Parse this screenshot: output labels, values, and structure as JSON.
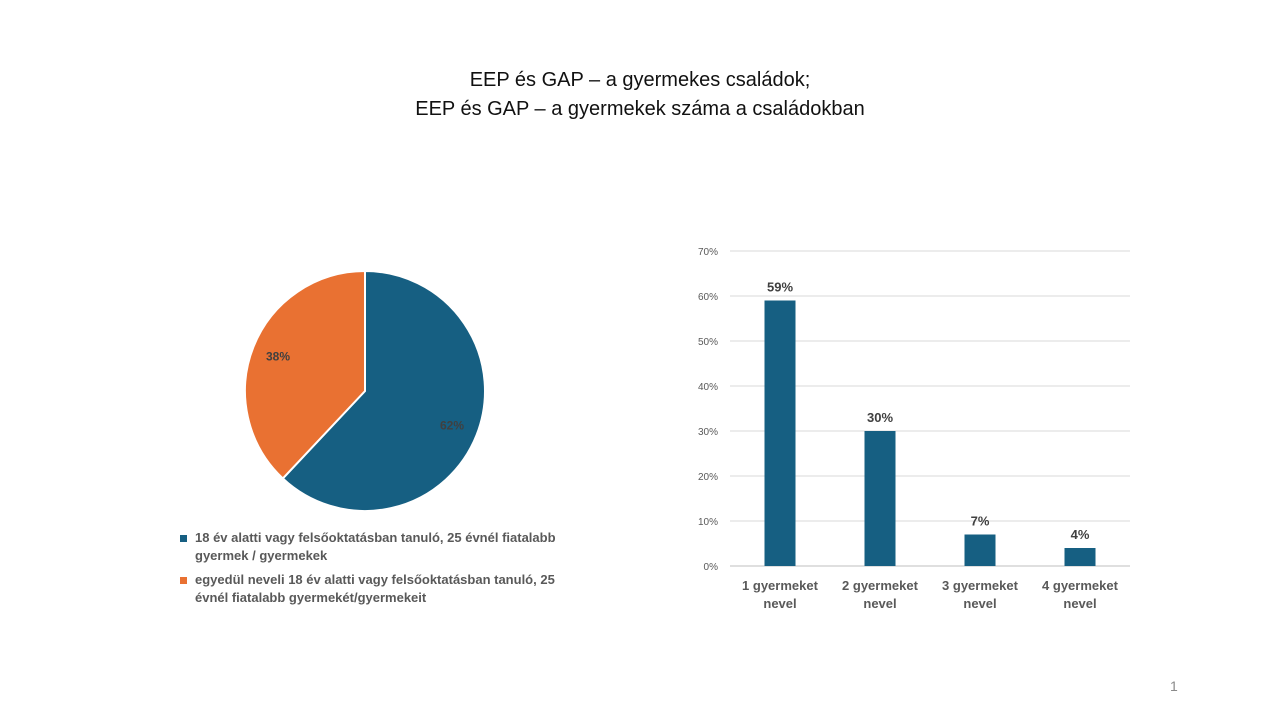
{
  "slide": {
    "title_line1": "EEP és GAP – a gyermekes családok;",
    "title_line2": "EEP és GAP – a gyermekek száma a családokban",
    "page_number": "1"
  },
  "chart_data": [
    {
      "type": "pie",
      "slices": [
        {
          "label": "18 év alatti vagy felsőoktatásban tanuló, 25 évnél fiatalabb gyermek / gyermekek",
          "value": 62,
          "display": "62%",
          "color": "#165F82"
        },
        {
          "label": "egyedül neveli 18 év alatti vagy felsőoktatásban tanuló, 25 évnél fiatalabb gyermekét/gyermekeit",
          "value": 38,
          "display": "38%",
          "color": "#E97132"
        }
      ],
      "legend": "bottom"
    },
    {
      "type": "bar",
      "categories": [
        "1 gyermeket nevel",
        "2 gyermeket nevel",
        "3 gyermeket nevel",
        "4 gyermeket nevel"
      ],
      "category_lines": [
        [
          "1 gyermeket",
          "nevel"
        ],
        [
          "2 gyermeket",
          "nevel"
        ],
        [
          "3 gyermeket",
          "nevel"
        ],
        [
          "4 gyermeket",
          "nevel"
        ]
      ],
      "values": [
        59,
        30,
        7,
        4
      ],
      "data_labels": [
        "59%",
        "30%",
        "7%",
        "4%"
      ],
      "ylim": [
        0,
        70
      ],
      "yticks": [
        "0%",
        "10%",
        "20%",
        "30%",
        "40%",
        "50%",
        "60%",
        "70%"
      ],
      "grid": true,
      "color": "#165F82"
    }
  ]
}
